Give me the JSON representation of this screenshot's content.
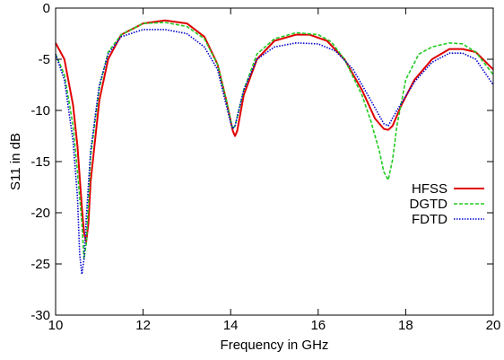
{
  "chart_data": {
    "type": "line",
    "xlabel": "Frequency in GHz",
    "ylabel": "S11 in dB",
    "xlim": [
      10,
      20
    ],
    "ylim": [
      -30,
      0
    ],
    "xticks": [
      10,
      12,
      14,
      16,
      18,
      20
    ],
    "yticks": [
      0,
      -5,
      -10,
      -15,
      -20,
      -25,
      -30
    ],
    "grid": false,
    "legend_position": "right",
    "series": [
      {
        "name": "HFSS",
        "color": "#e00000",
        "dash": "solid",
        "x": [
          10.0,
          10.2,
          10.4,
          10.5,
          10.6,
          10.65,
          10.7,
          10.75,
          10.8,
          11.0,
          11.2,
          11.5,
          12.0,
          12.5,
          13.0,
          13.4,
          13.7,
          13.9,
          14.05,
          14.1,
          14.15,
          14.3,
          14.6,
          15.0,
          15.5,
          15.8,
          16.2,
          16.6,
          17.0,
          17.3,
          17.5,
          17.6,
          17.7,
          17.9,
          18.2,
          18.6,
          19.0,
          19.3,
          19.6,
          20.0
        ],
        "y": [
          -3.4,
          -5.0,
          -9.5,
          -13.5,
          -19.5,
          -22.0,
          -22.8,
          -21.0,
          -17.0,
          -9.0,
          -5.0,
          -2.6,
          -1.5,
          -1.2,
          -1.5,
          -2.8,
          -5.5,
          -9.0,
          -12.0,
          -12.5,
          -12.0,
          -8.5,
          -5.0,
          -3.2,
          -2.6,
          -2.6,
          -3.2,
          -5.0,
          -8.0,
          -10.8,
          -11.8,
          -11.9,
          -11.5,
          -9.5,
          -7.0,
          -5.0,
          -4.0,
          -4.0,
          -4.3,
          -6.0
        ]
      },
      {
        "name": "DGTD",
        "color": "#22cc22",
        "dash": "dashed",
        "x": [
          10.0,
          10.2,
          10.4,
          10.5,
          10.6,
          10.65,
          10.7,
          10.75,
          10.8,
          11.0,
          11.2,
          11.5,
          12.0,
          12.5,
          13.0,
          13.4,
          13.7,
          13.9,
          14.0,
          14.05,
          14.1,
          14.3,
          14.6,
          15.0,
          15.5,
          16.0,
          16.3,
          16.6,
          17.0,
          17.2,
          17.4,
          17.5,
          17.6,
          17.7,
          17.8,
          18.0,
          18.3,
          18.6,
          19.0,
          19.3,
          19.6,
          20.0
        ],
        "y": [
          -4.5,
          -6.5,
          -11.5,
          -16.0,
          -21.0,
          -24.5,
          -23.0,
          -19.0,
          -14.5,
          -7.8,
          -4.3,
          -2.6,
          -1.5,
          -1.4,
          -1.8,
          -3.0,
          -5.5,
          -9.0,
          -11.0,
          -11.8,
          -11.5,
          -8.0,
          -4.5,
          -3.0,
          -2.4,
          -2.6,
          -3.3,
          -5.0,
          -8.5,
          -11.0,
          -14.0,
          -16.0,
          -16.8,
          -14.8,
          -11.5,
          -7.0,
          -4.5,
          -3.8,
          -3.4,
          -3.5,
          -4.3,
          -6.5
        ]
      },
      {
        "name": "FDTD",
        "color": "#0000cc",
        "dash": "dotted",
        "x": [
          10.0,
          10.2,
          10.4,
          10.5,
          10.55,
          10.6,
          10.65,
          10.7,
          10.8,
          11.0,
          11.2,
          11.5,
          12.0,
          12.5,
          13.0,
          13.4,
          13.7,
          13.9,
          14.0,
          14.05,
          14.1,
          14.3,
          14.6,
          15.0,
          15.5,
          16.0,
          16.4,
          16.8,
          17.2,
          17.5,
          17.6,
          17.8,
          18.2,
          18.6,
          19.0,
          19.3,
          19.6,
          20.0
        ],
        "y": [
          -4.5,
          -7.0,
          -13.0,
          -18.5,
          -24.0,
          -26.0,
          -24.5,
          -20.5,
          -14.0,
          -7.5,
          -4.5,
          -2.8,
          -2.1,
          -2.1,
          -2.5,
          -3.8,
          -6.0,
          -9.5,
          -11.2,
          -11.8,
          -11.5,
          -8.0,
          -5.0,
          -3.8,
          -3.4,
          -3.5,
          -4.2,
          -6.0,
          -9.0,
          -11.3,
          -11.5,
          -10.0,
          -7.2,
          -5.3,
          -4.4,
          -4.4,
          -5.0,
          -7.5
        ]
      }
    ]
  }
}
